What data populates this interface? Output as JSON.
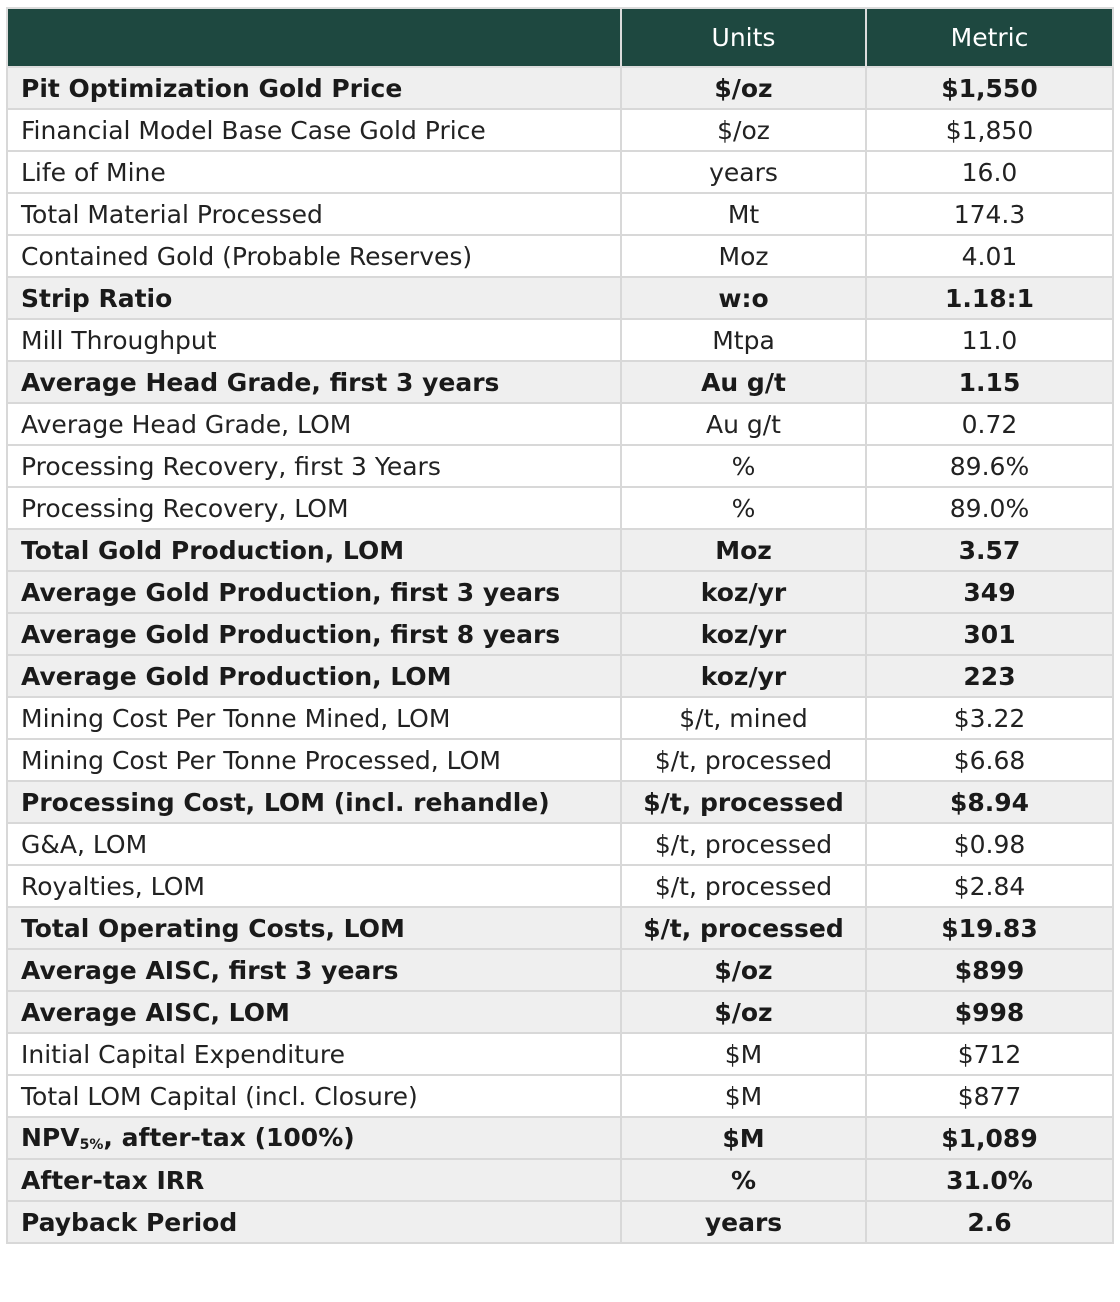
{
  "header": {
    "blank": "",
    "units": "Units",
    "metric": "Metric"
  },
  "rows": [
    {
      "label": "Pit Optimization Gold Price",
      "units": "$/oz",
      "metric": "$1,550",
      "bold": true
    },
    {
      "label": "Financial Model Base Case Gold Price",
      "units": "$/oz",
      "metric": "$1,850",
      "bold": false
    },
    {
      "label": "Life of Mine",
      "units": "years",
      "metric": "16.0",
      "bold": false
    },
    {
      "label": "Total Material Processed",
      "units": "Mt",
      "metric": "174.3",
      "bold": false
    },
    {
      "label": "Contained Gold (Probable Reserves)",
      "units": "Moz",
      "metric": "4.01",
      "bold": false
    },
    {
      "label": "Strip Ratio",
      "units": "w:o",
      "metric": "1.18:1",
      "bold": true
    },
    {
      "label": "Mill Throughput",
      "units": "Mtpa",
      "metric": "11.0",
      "bold": false
    },
    {
      "label": "Average Head Grade, first 3 years",
      "units": "Au g/t",
      "metric": "1.15",
      "bold": true
    },
    {
      "label": "Average Head Grade, LOM",
      "units": "Au g/t",
      "metric": "0.72",
      "bold": false
    },
    {
      "label": "Processing Recovery, first 3 Years",
      "units": "%",
      "metric": "89.6%",
      "bold": false
    },
    {
      "label": "Processing Recovery, LOM",
      "units": "%",
      "metric": "89.0%",
      "bold": false
    },
    {
      "label": "Total Gold Production, LOM",
      "units": "Moz",
      "metric": "3.57",
      "bold": true
    },
    {
      "label": "Average Gold Production, first 3 years",
      "units": "koz/yr",
      "metric": "349",
      "bold": true
    },
    {
      "label": "Average Gold Production, first 8 years",
      "units": "koz/yr",
      "metric": "301",
      "bold": true
    },
    {
      "label": "Average Gold Production, LOM",
      "units": "koz/yr",
      "metric": "223",
      "bold": true
    },
    {
      "label": "Mining Cost Per Tonne Mined, LOM",
      "units": "$/t, mined",
      "metric": "$3.22",
      "bold": false
    },
    {
      "label": "Mining Cost Per Tonne Processed, LOM",
      "units": "$/t, processed",
      "metric": "$6.68",
      "bold": false
    },
    {
      "label": "Processing Cost, LOM (incl. rehandle)",
      "units": "$/t, processed",
      "metric": "$8.94",
      "bold": true
    },
    {
      "label": "G&A, LOM",
      "units": "$/t, processed",
      "metric": "$0.98",
      "bold": false
    },
    {
      "label": "Royalties, LOM",
      "units": "$/t, processed",
      "metric": "$2.84",
      "bold": false
    },
    {
      "label": "Total Operating Costs, LOM",
      "units": "$/t, processed",
      "metric": "$19.83",
      "bold": true
    },
    {
      "label": "Average AISC, first 3 years",
      "units": "$/oz",
      "metric": "$899",
      "bold": true
    },
    {
      "label": "Average AISC, LOM",
      "units": "$/oz",
      "metric": "$998",
      "bold": true
    },
    {
      "label": "Initial Capital Expenditure",
      "units": "$M",
      "metric": "$712",
      "bold": false
    },
    {
      "label": "Total LOM Capital (incl. Closure)",
      "units": "$M",
      "metric": "$877",
      "bold": false
    },
    {
      "label": "NPV",
      "label_sub": "5%",
      "label_suffix": ", after-tax (100%)",
      "units": "$M",
      "metric": "$1,089",
      "bold": true
    },
    {
      "label": "After-tax IRR",
      "units": "%",
      "metric": "31.0%",
      "bold": true
    },
    {
      "label": "Payback Period",
      "units": "years",
      "metric": "2.6",
      "bold": true
    }
  ]
}
